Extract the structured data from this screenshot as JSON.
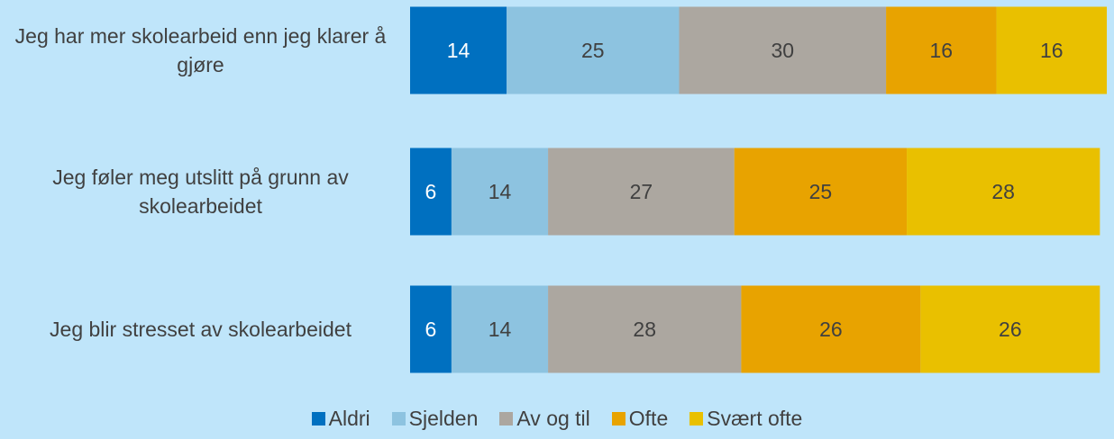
{
  "chart_data": {
    "type": "stacked-bar-horizontal",
    "categories": [
      "Jeg har mer skolearbeid enn jeg klarer å gjøre",
      "Jeg føler meg utslitt på grunn av skolearbeidet",
      "Jeg blir stresset av skolearbeidet"
    ],
    "series": [
      {
        "name": "Aldri",
        "color": "#0070c0",
        "values": [
          14,
          6,
          6
        ]
      },
      {
        "name": "Sjelden",
        "color": "#8dc3e0",
        "values": [
          25,
          14,
          14
        ]
      },
      {
        "name": "Av og til",
        "color": "#aca7a0",
        "values": [
          30,
          27,
          28
        ]
      },
      {
        "name": "Ofte",
        "color": "#e8a300",
        "values": [
          16,
          25,
          26
        ]
      },
      {
        "name": "Svært ofte",
        "color": "#e9c000",
        "values": [
          16,
          28,
          26
        ]
      }
    ],
    "legend": "bottom"
  }
}
